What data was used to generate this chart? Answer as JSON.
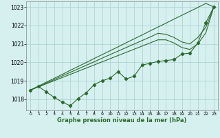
{
  "hours": [
    0,
    1,
    2,
    3,
    4,
    5,
    6,
    7,
    8,
    9,
    10,
    11,
    12,
    13,
    14,
    15,
    16,
    17,
    18,
    19,
    20,
    21,
    22,
    23
  ],
  "pressure_main": [
    1018.5,
    1018.7,
    1018.4,
    1018.1,
    1017.85,
    1017.65,
    1018.05,
    1018.35,
    1018.8,
    1019.0,
    1019.15,
    1019.5,
    1019.1,
    1019.25,
    1019.85,
    1019.95,
    1020.05,
    1020.1,
    1020.15,
    1020.45,
    1020.5,
    1021.05,
    1022.15,
    1023.0
  ],
  "pressure_linear1": [
    1018.5,
    1018.71,
    1018.93,
    1019.14,
    1019.35,
    1019.57,
    1019.78,
    1019.99,
    1020.21,
    1020.42,
    1020.63,
    1020.84,
    1021.06,
    1021.27,
    1021.48,
    1021.7,
    1021.91,
    1022.12,
    1022.34,
    1022.55,
    1022.76,
    1022.97,
    1023.19,
    1023.0
  ],
  "pressure_linear2": [
    1018.5,
    1018.67,
    1018.84,
    1019.01,
    1019.18,
    1019.35,
    1019.52,
    1019.69,
    1019.86,
    1020.03,
    1020.2,
    1020.37,
    1020.54,
    1020.71,
    1020.88,
    1021.05,
    1021.22,
    1021.22,
    1021.05,
    1020.8,
    1020.7,
    1021.0,
    1021.6,
    1023.0
  ],
  "pressure_linear3": [
    1018.5,
    1018.69,
    1018.88,
    1019.07,
    1019.27,
    1019.46,
    1019.65,
    1019.84,
    1020.03,
    1020.23,
    1020.42,
    1020.61,
    1020.8,
    1020.99,
    1021.18,
    1021.37,
    1021.57,
    1021.52,
    1021.35,
    1021.1,
    1021.0,
    1021.35,
    1021.9,
    1023.0
  ],
  "ylim": [
    1017.4,
    1023.3
  ],
  "yticks": [
    1018,
    1019,
    1020,
    1021,
    1022,
    1023
  ],
  "xlim": [
    -0.5,
    23.5
  ],
  "xticks": [
    0,
    1,
    2,
    3,
    4,
    5,
    6,
    7,
    8,
    9,
    10,
    11,
    12,
    13,
    14,
    15,
    16,
    17,
    18,
    19,
    20,
    21,
    22,
    23
  ],
  "xlabel": "Graphe pression niveau de la mer (hPa)",
  "line_color": "#2d6a2d",
  "bg_color": "#d6f0f0",
  "marker": "D",
  "marker_size": 2.2,
  "linewidth": 0.8
}
